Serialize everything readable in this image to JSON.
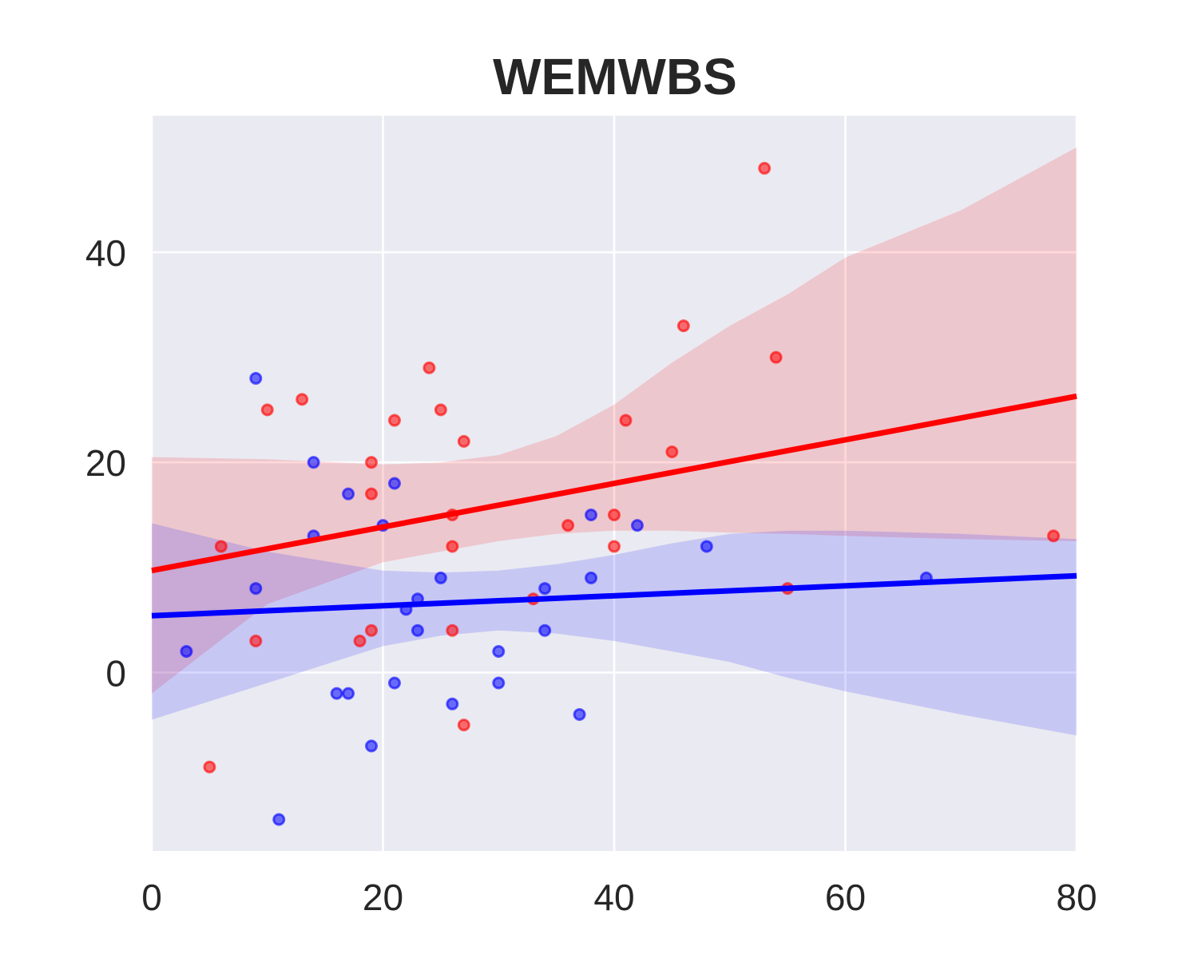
{
  "chart_data": {
    "type": "scatter",
    "title": "WEMWBS",
    "xlabel": "",
    "ylabel": "",
    "xlim": [
      0,
      80
    ],
    "ylim": [
      -17,
      53
    ],
    "grid": true,
    "x_ticks": [
      0,
      20,
      40,
      60,
      80
    ],
    "y_ticks": [
      0,
      20,
      40
    ],
    "series": [
      {
        "color": "#ff0000",
        "points": [
          [
            5,
            -9
          ],
          [
            6,
            12
          ],
          [
            9,
            3
          ],
          [
            10,
            25
          ],
          [
            13,
            26
          ],
          [
            18,
            3
          ],
          [
            19,
            4
          ],
          [
            19,
            17
          ],
          [
            19,
            20
          ],
          [
            21,
            24
          ],
          [
            24,
            29
          ],
          [
            25,
            25
          ],
          [
            26,
            4
          ],
          [
            26,
            12
          ],
          [
            26,
            15
          ],
          [
            27,
            22
          ],
          [
            27,
            -5
          ],
          [
            33,
            7
          ],
          [
            36,
            14
          ],
          [
            40,
            12
          ],
          [
            40,
            15
          ],
          [
            41,
            24
          ],
          [
            45,
            21
          ],
          [
            46,
            33
          ],
          [
            53,
            48
          ],
          [
            54,
            30
          ],
          [
            55,
            8
          ],
          [
            78,
            13
          ]
        ],
        "fit_line": [
          [
            0,
            9.7
          ],
          [
            80,
            26.3
          ]
        ],
        "ci_band": {
          "x": [
            0,
            10,
            20,
            25,
            30,
            35,
            40,
            45,
            50,
            55,
            60,
            70,
            80
          ],
          "lower": [
            -2,
            6.5,
            10.5,
            11.5,
            12.5,
            13.2,
            13.5,
            13.5,
            13.3,
            13.2,
            13,
            12.7,
            12.5
          ],
          "upper": [
            20.5,
            20.3,
            19.8,
            20,
            20.7,
            22.5,
            25.5,
            29.5,
            33,
            36,
            39.5,
            44,
            50
          ]
        }
      },
      {
        "color": "#0000ff",
        "points": [
          [
            3,
            2
          ],
          [
            9,
            28
          ],
          [
            9,
            8
          ],
          [
            11,
            -14
          ],
          [
            14,
            20
          ],
          [
            14,
            13
          ],
          [
            16,
            -2
          ],
          [
            17,
            17
          ],
          [
            17,
            -2
          ],
          [
            19,
            -7
          ],
          [
            20,
            14
          ],
          [
            21,
            18
          ],
          [
            21,
            -1
          ],
          [
            22,
            6
          ],
          [
            23,
            7
          ],
          [
            23,
            4
          ],
          [
            25,
            9
          ],
          [
            26,
            -3
          ],
          [
            30,
            2
          ],
          [
            30,
            -1
          ],
          [
            34,
            8
          ],
          [
            34,
            4
          ],
          [
            37,
            -4
          ],
          [
            38,
            15
          ],
          [
            38,
            9
          ],
          [
            42,
            14
          ],
          [
            48,
            12
          ],
          [
            67,
            9
          ]
        ],
        "fit_line": [
          [
            0,
            5.4
          ],
          [
            80,
            9.2
          ]
        ],
        "ci_band": {
          "x": [
            0,
            10,
            20,
            25,
            30,
            35,
            40,
            45,
            50,
            55,
            60,
            70,
            80
          ],
          "lower": [
            -4.5,
            -1,
            2.5,
            3.5,
            4,
            3.7,
            3,
            2,
            1,
            -0.5,
            -1.8,
            -4,
            -6
          ],
          "upper": [
            14.2,
            11.5,
            9.7,
            9.5,
            9.7,
            10.3,
            11.2,
            12.3,
            13.2,
            13.5,
            13.5,
            13.2,
            12.7
          ]
        }
      }
    ]
  }
}
